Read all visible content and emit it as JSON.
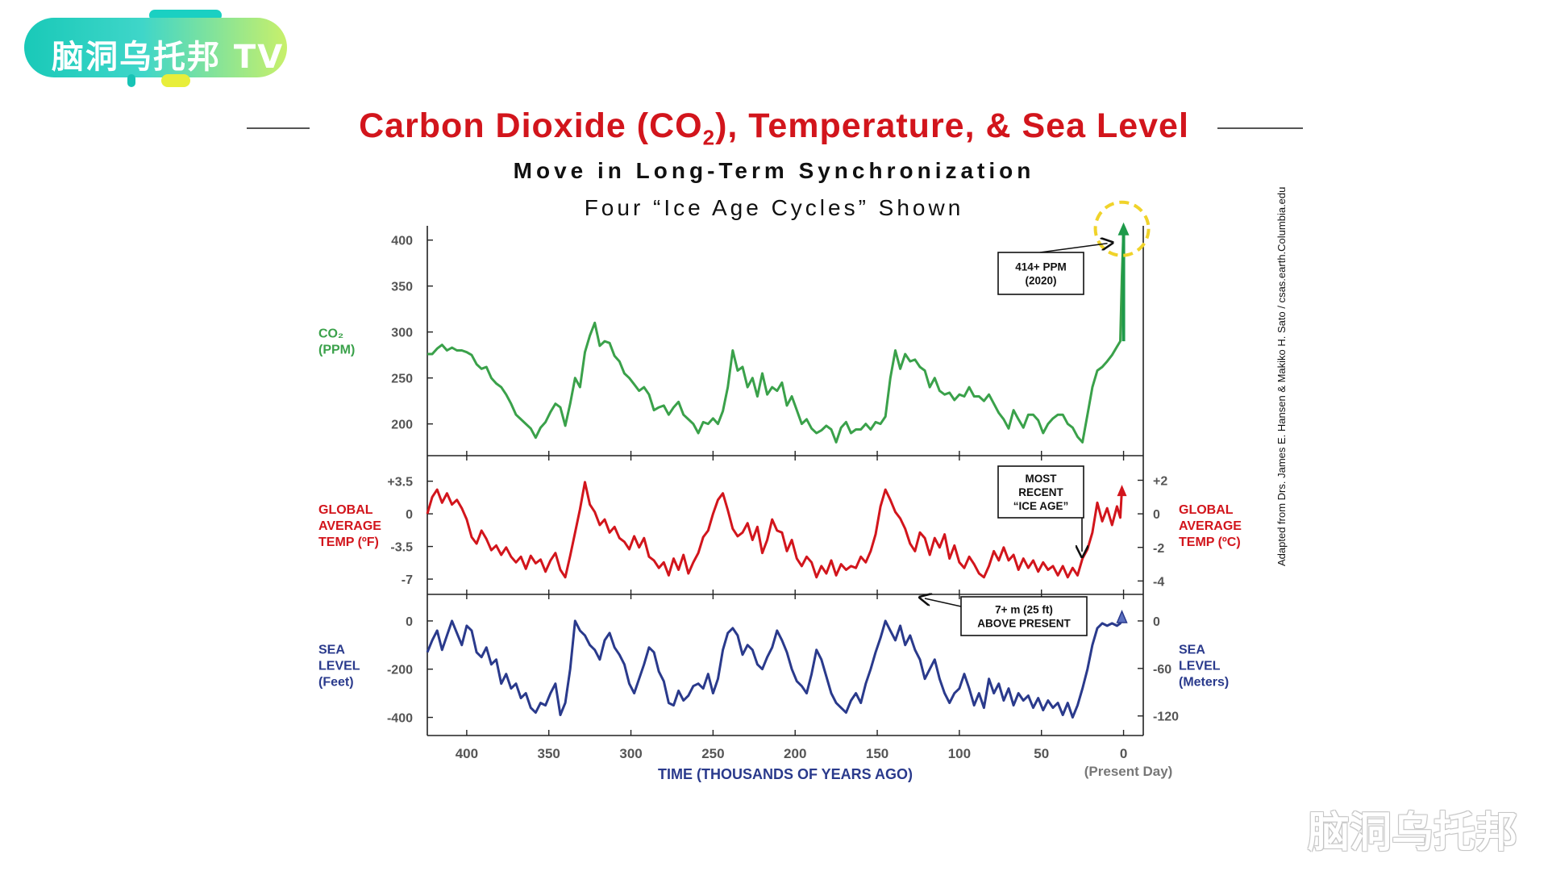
{
  "logo": {
    "text": "脑洞乌托邦 TV"
  },
  "title": {
    "prefix": "Carbon Dioxide (CO",
    "sub": "2",
    "suffix": "), Temperature, & Sea Level"
  },
  "subtitle1": "Move in Long-Term Synchronization",
  "subtitle2": "Four “Ice Age Cycles” Shown",
  "watermark": "脑洞乌托邦",
  "credit": "Adapted from Drs. James E. Hansen & Makiko H. Sato / csas.earth.Columbia.edu",
  "colors": {
    "co2": "#3aa14a",
    "temp": "#d2151c",
    "sea": "#2a3a8c",
    "arrow": "#1e9a4a",
    "highlight": "#f0d32a",
    "title": "#d2151c"
  },
  "chart_data": {
    "type": "line",
    "x_label": "TIME (THOUSANDS OF YEARS AGO)",
    "x_note": "(Present Day)",
    "x_ticks": [
      400,
      350,
      300,
      250,
      200,
      150,
      100,
      50,
      0
    ],
    "x_range": [
      424,
      -12
    ],
    "panels": [
      {
        "id": "co2",
        "label_left": [
          "CO₂",
          "(PPM)"
        ],
        "ticks_left": [
          {
            "v": 400,
            "t": "400"
          },
          {
            "v": 350,
            "t": "350"
          },
          {
            "v": 300,
            "t": "300"
          },
          {
            "v": 250,
            "t": "250"
          },
          {
            "v": 200,
            "t": "200"
          }
        ],
        "y_range": [
          176,
          405
        ],
        "series": {
          "name": "CO2",
          "x": [
            424,
            421,
            418,
            415,
            412,
            409,
            406,
            403,
            400,
            397,
            394,
            391,
            388,
            385,
            382,
            379,
            376,
            373,
            370,
            367,
            364,
            361,
            358,
            355,
            352,
            349,
            346,
            343,
            340,
            337,
            334,
            331,
            328,
            325,
            322,
            319,
            316,
            313,
            310,
            307,
            304,
            301,
            298,
            295,
            292,
            289,
            286,
            283,
            280,
            277,
            274,
            271,
            268,
            265,
            262,
            259,
            256,
            253,
            250,
            247,
            244,
            241,
            238,
            235,
            232,
            229,
            226,
            223,
            220,
            217,
            214,
            211,
            208,
            205,
            202,
            199,
            196,
            193,
            190,
            187,
            184,
            181,
            178,
            175,
            172,
            169,
            166,
            163,
            160,
            157,
            154,
            151,
            148,
            145,
            142,
            139,
            136,
            133,
            130,
            127,
            124,
            121,
            118,
            115,
            112,
            109,
            106,
            103,
            100,
            97,
            94,
            91,
            88,
            85,
            82,
            79,
            76,
            73,
            70,
            67,
            64,
            61,
            58,
            55,
            52,
            49,
            46,
            43,
            40,
            37,
            34,
            31,
            28,
            25,
            22,
            19,
            16,
            13,
            10,
            7,
            4,
            2,
            1,
            0
          ],
          "y": [
            276,
            276,
            282,
            286,
            280,
            283,
            280,
            280,
            278,
            275,
            265,
            260,
            262,
            250,
            244,
            240,
            232,
            222,
            210,
            205,
            200,
            195,
            185,
            196,
            202,
            213,
            222,
            218,
            198,
            222,
            250,
            240,
            278,
            296,
            310,
            285,
            290,
            288,
            274,
            268,
            255,
            250,
            243,
            236,
            240,
            232,
            215,
            218,
            220,
            210,
            218,
            224,
            210,
            205,
            200,
            190,
            202,
            200,
            206,
            200,
            214,
            240,
            280,
            258,
            262,
            240,
            250,
            230,
            255,
            232,
            240,
            236,
            245,
            220,
            230,
            215,
            200,
            205,
            195,
            190,
            193,
            198,
            194,
            180,
            196,
            202,
            190,
            194,
            194,
            200,
            194,
            202,
            200,
            208,
            250,
            280,
            260,
            276,
            268,
            270,
            262,
            258,
            240,
            250,
            236,
            232,
            234,
            226,
            232,
            230,
            240,
            230,
            230,
            225,
            232,
            222,
            212,
            205,
            195,
            215,
            205,
            196,
            210,
            210,
            204,
            190,
            200,
            206,
            210,
            210,
            200,
            196,
            186,
            180,
            210,
            240,
            258,
            262,
            268,
            275,
            284,
            290,
            360,
            414
          ]
        }
      },
      {
        "id": "temp",
        "label_left": [
          "GLOBAL",
          "AVERAGE",
          "TEMP (ºF)"
        ],
        "label_right": [
          "GLOBAL",
          "AVERAGE",
          "TEMP (ºC)"
        ],
        "ticks_left": [
          {
            "v": 3.5,
            "t": "+3.5"
          },
          {
            "v": 0,
            "t": "0"
          },
          {
            "v": -3.5,
            "t": "-3.5"
          },
          {
            "v": -7,
            "t": "-7"
          }
        ],
        "ticks_right": [
          {
            "v": 3.6,
            "t": "+2"
          },
          {
            "v": 0,
            "t": "0"
          },
          {
            "v": -3.6,
            "t": "-2"
          },
          {
            "v": -7.2,
            "t": "-4"
          }
        ],
        "y_range": [
          -7.6,
          5.2
        ],
        "series": {
          "name": "Temperature",
          "x": [
            424,
            421,
            418,
            415,
            412,
            409,
            406,
            403,
            400,
            397,
            394,
            391,
            388,
            385,
            382,
            379,
            376,
            373,
            370,
            367,
            364,
            361,
            358,
            355,
            352,
            349,
            346,
            343,
            340,
            337,
            334,
            331,
            328,
            325,
            322,
            319,
            316,
            313,
            310,
            307,
            304,
            301,
            298,
            295,
            292,
            289,
            286,
            283,
            280,
            277,
            274,
            271,
            268,
            265,
            262,
            259,
            256,
            253,
            250,
            247,
            244,
            241,
            238,
            235,
            232,
            229,
            226,
            223,
            220,
            217,
            214,
            211,
            208,
            205,
            202,
            199,
            196,
            193,
            190,
            187,
            184,
            181,
            178,
            175,
            172,
            169,
            166,
            163,
            160,
            157,
            154,
            151,
            148,
            145,
            142,
            139,
            136,
            133,
            130,
            127,
            124,
            121,
            118,
            115,
            112,
            109,
            106,
            103,
            100,
            97,
            94,
            91,
            88,
            85,
            82,
            79,
            76,
            73,
            70,
            67,
            64,
            61,
            58,
            55,
            52,
            49,
            46,
            43,
            40,
            37,
            34,
            31,
            28,
            25,
            22,
            19,
            16,
            13,
            10,
            7,
            4,
            2,
            1
          ],
          "y": [
            0,
            1.8,
            2.6,
            1.2,
            2.2,
            1.0,
            1.5,
            0.6,
            -0.6,
            -2.5,
            -3.2,
            -1.8,
            -2.7,
            -3.9,
            -3.4,
            -4.4,
            -3.6,
            -4.6,
            -5.2,
            -4.6,
            -5.9,
            -4.5,
            -5.3,
            -4.9,
            -6.2,
            -5.0,
            -4.2,
            -6.0,
            -6.8,
            -4.5,
            -2.0,
            0.5,
            3.4,
            1.0,
            0.2,
            -1.2,
            -0.6,
            -2.0,
            -1.4,
            -2.6,
            -3.0,
            -3.8,
            -2.4,
            -3.6,
            -2.6,
            -4.6,
            -5.0,
            -5.8,
            -5.2,
            -6.6,
            -4.8,
            -6.0,
            -4.4,
            -6.4,
            -5.2,
            -4.2,
            -2.5,
            -1.8,
            0,
            1.5,
            2.2,
            0.4,
            -1.6,
            -2.4,
            -2.0,
            -1.0,
            -2.8,
            -1.4,
            -4.2,
            -2.8,
            -0.6,
            -1.8,
            -2.0,
            -4.0,
            -2.8,
            -4.8,
            -5.6,
            -4.6,
            -5.2,
            -6.8,
            -5.6,
            -6.4,
            -5.0,
            -6.6,
            -5.4,
            -6.0,
            -5.6,
            -5.8,
            -4.6,
            -5.2,
            -4.0,
            -2.2,
            0.8,
            2.6,
            1.5,
            0.2,
            -0.5,
            -1.6,
            -3.2,
            -4.0,
            -2.0,
            -2.6,
            -4.4,
            -2.6,
            -3.6,
            -2.2,
            -4.8,
            -3.4,
            -5.2,
            -5.8,
            -4.6,
            -5.4,
            -6.4,
            -6.8,
            -5.6,
            -4.0,
            -5.0,
            -3.6,
            -5.0,
            -4.4,
            -6.0,
            -4.8,
            -5.8,
            -5.0,
            -6.2,
            -5.2,
            -6.0,
            -5.6,
            -6.6,
            -5.6,
            -6.8,
            -5.8,
            -6.6,
            -4.8,
            -3.8,
            -2.0,
            1.2,
            -0.8,
            0.6,
            -1.2,
            0.8,
            -0.4,
            2.6
          ]
        }
      },
      {
        "id": "sea",
        "label_left": [
          "SEA",
          "LEVEL",
          "(Feet)"
        ],
        "label_right": [
          "SEA",
          "LEVEL",
          "(Meters)"
        ],
        "ticks_left": [
          {
            "v": 0,
            "t": "0"
          },
          {
            "v": -200,
            "t": "-200"
          },
          {
            "v": -400,
            "t": "-400"
          }
        ],
        "ticks_right": [
          {
            "v": 0,
            "t": "0"
          },
          {
            "v": -197,
            "t": "-60"
          },
          {
            "v": -394,
            "t": "-120"
          }
        ],
        "y_range": [
          -435,
          70
        ],
        "series": {
          "name": "Sea level",
          "x": [
            424,
            421,
            418,
            415,
            412,
            409,
            406,
            403,
            400,
            397,
            394,
            391,
            388,
            385,
            382,
            379,
            376,
            373,
            370,
            367,
            364,
            361,
            358,
            355,
            352,
            349,
            346,
            343,
            340,
            337,
            334,
            331,
            328,
            325,
            322,
            319,
            316,
            313,
            310,
            307,
            304,
            301,
            298,
            295,
            292,
            289,
            286,
            283,
            280,
            277,
            274,
            271,
            268,
            265,
            262,
            259,
            256,
            253,
            250,
            247,
            244,
            241,
            238,
            235,
            232,
            229,
            226,
            223,
            220,
            217,
            214,
            211,
            208,
            205,
            202,
            199,
            196,
            193,
            190,
            187,
            184,
            181,
            178,
            175,
            172,
            169,
            166,
            163,
            160,
            157,
            154,
            151,
            148,
            145,
            142,
            139,
            136,
            133,
            130,
            127,
            124,
            121,
            118,
            115,
            112,
            109,
            106,
            103,
            100,
            97,
            94,
            91,
            88,
            85,
            82,
            79,
            76,
            73,
            70,
            67,
            64,
            61,
            58,
            55,
            52,
            49,
            46,
            43,
            40,
            37,
            34,
            31,
            28,
            25,
            22,
            19,
            16,
            13,
            10,
            7,
            4,
            2,
            1
          ],
          "y": [
            -130,
            -80,
            -40,
            -120,
            -60,
            0,
            -50,
            -100,
            -20,
            -40,
            -130,
            -150,
            -110,
            -180,
            -160,
            -260,
            -220,
            -280,
            -260,
            -320,
            -300,
            -360,
            -380,
            -340,
            -350,
            -300,
            -260,
            -390,
            -340,
            -200,
            0,
            -40,
            -60,
            -100,
            -120,
            -160,
            -80,
            -50,
            -110,
            -140,
            -180,
            -260,
            -300,
            -240,
            -180,
            -110,
            -130,
            -210,
            -250,
            -340,
            -350,
            -290,
            -330,
            -310,
            -270,
            -260,
            -280,
            -220,
            -300,
            -240,
            -120,
            -50,
            -30,
            -60,
            -140,
            -100,
            -120,
            -180,
            -200,
            -150,
            -110,
            -40,
            -80,
            -130,
            -200,
            -250,
            -270,
            -300,
            -220,
            -120,
            -160,
            -230,
            -300,
            -340,
            -360,
            -380,
            -330,
            -300,
            -340,
            -260,
            -200,
            -130,
            -70,
            0,
            -40,
            -80,
            -20,
            -100,
            -60,
            -120,
            -160,
            -240,
            -200,
            -160,
            -240,
            -300,
            -340,
            -300,
            -280,
            -220,
            -280,
            -350,
            -300,
            -360,
            -240,
            -300,
            -260,
            -330,
            -280,
            -350,
            -300,
            -330,
            -310,
            -360,
            -320,
            -370,
            -330,
            -360,
            -340,
            -390,
            -340,
            -400,
            -350,
            -280,
            -200,
            -100,
            -30,
            -10,
            -20,
            -10,
            -20,
            -10,
            20
          ]
        }
      }
    ],
    "annotations": [
      {
        "panel": "co2",
        "lines": [
          "414+ PPM",
          "(2020)"
        ]
      },
      {
        "panel": "temp",
        "lines": [
          "MOST",
          "RECENT",
          "“ICE AGE”"
        ]
      },
      {
        "panel": "sea",
        "lines": [
          "7+ m  (25 ft)",
          "ABOVE PRESENT"
        ]
      }
    ]
  }
}
